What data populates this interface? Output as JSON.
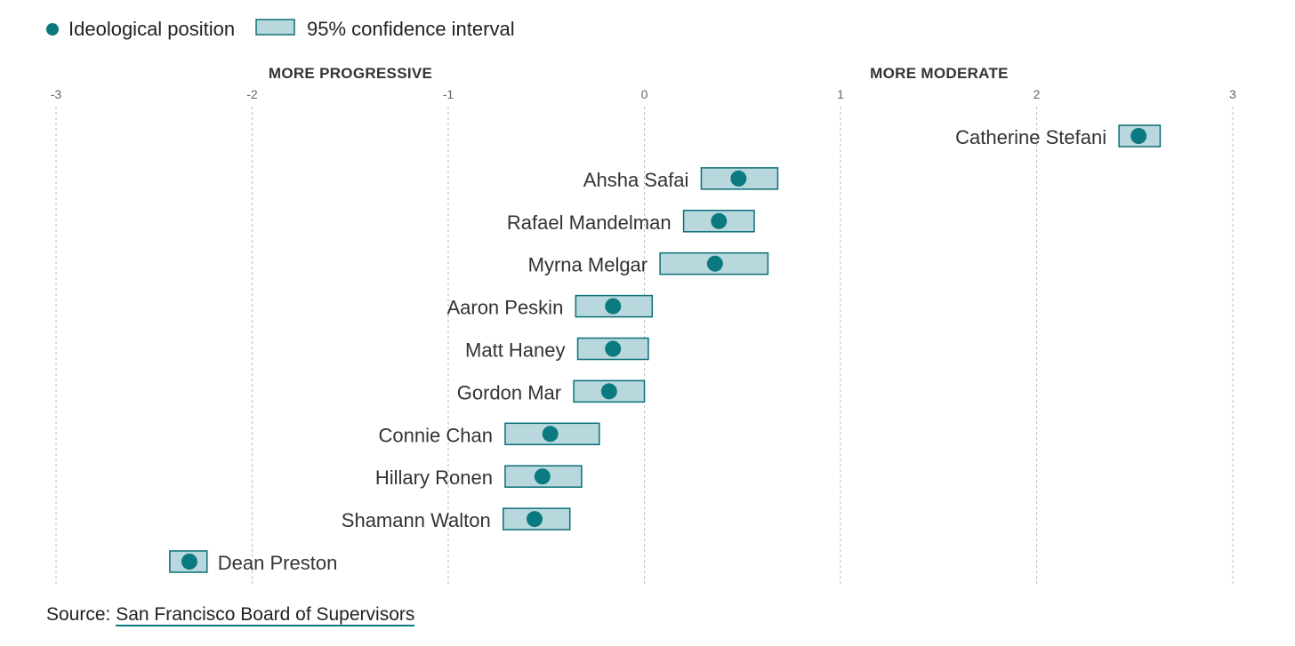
{
  "legend": {
    "point_label": "Ideological position",
    "interval_label": "95% confidence interval"
  },
  "headers": {
    "left": "MORE PROGRESSIVE",
    "right": "MORE MODERATE"
  },
  "source": {
    "prefix": "Source: ",
    "link_text": "San Francisco Board of Supervisors"
  },
  "colors": {
    "point": "#0b7a80",
    "box_fill": "#b8d8dd",
    "box_stroke": "#0b6f78",
    "grid": "#bbbbbb"
  },
  "chart_data": {
    "type": "scatter",
    "xlim": [
      -3,
      3
    ],
    "ticks": [
      "-3",
      "-2",
      "-1",
      "0",
      "1",
      "2",
      "3"
    ],
    "grid": "vertical dashed",
    "legend_position": "top-left",
    "series": [
      {
        "name": "Ideological position",
        "points": [
          {
            "label": "Catherine Stefani",
            "value": 2.52,
            "ci": [
              2.42,
              2.63
            ]
          },
          {
            "label": "Ahsha Safai",
            "value": 0.48,
            "ci": [
              0.29,
              0.68
            ]
          },
          {
            "label": "Rafael Mandelman",
            "value": 0.38,
            "ci": [
              0.2,
              0.56
            ]
          },
          {
            "label": "Myrna Melgar",
            "value": 0.36,
            "ci": [
              0.08,
              0.63
            ]
          },
          {
            "label": "Aaron Peskin",
            "value": -0.16,
            "ci": [
              -0.35,
              0.04
            ]
          },
          {
            "label": "Matt Haney",
            "value": -0.16,
            "ci": [
              -0.34,
              0.02
            ]
          },
          {
            "label": "Gordon Mar",
            "value": -0.18,
            "ci": [
              -0.36,
              0.0
            ]
          },
          {
            "label": "Connie Chan",
            "value": -0.48,
            "ci": [
              -0.71,
              -0.23
            ]
          },
          {
            "label": "Hillary Ronen",
            "value": -0.52,
            "ci": [
              -0.71,
              -0.32
            ]
          },
          {
            "label": "Shamann Walton",
            "value": -0.56,
            "ci": [
              -0.72,
              -0.38
            ]
          },
          {
            "label": "Dean Preston",
            "value": -2.32,
            "ci": [
              -2.42,
              -2.23
            ]
          }
        ]
      }
    ]
  }
}
